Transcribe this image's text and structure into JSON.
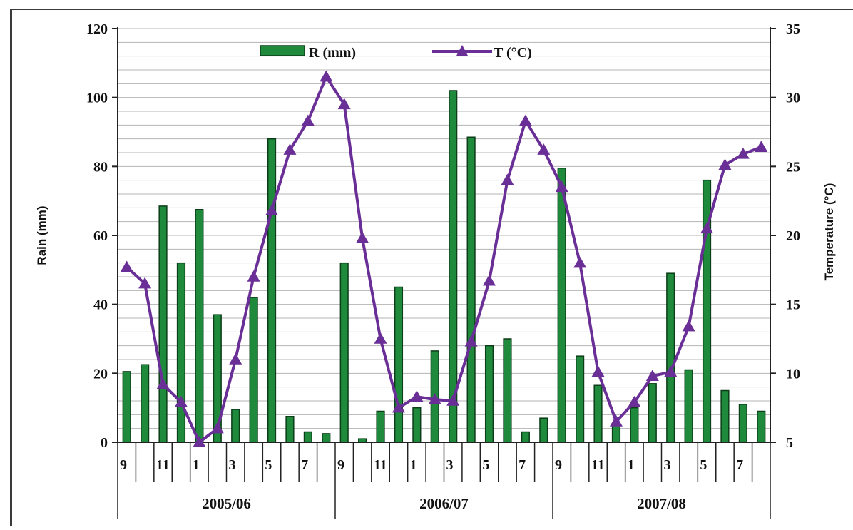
{
  "chart_data": {
    "type": "bar+line",
    "title": "",
    "left_axis": {
      "label": "Rain (mm)",
      "ylim": [
        0,
        120
      ],
      "ticks": [
        0,
        20,
        40,
        60,
        80,
        100,
        120
      ]
    },
    "right_axis": {
      "label": "Temperature (°C)",
      "ylim": [
        5,
        35
      ],
      "ticks": [
        5,
        10,
        15,
        20,
        25,
        30,
        35
      ]
    },
    "legend": {
      "position": "top",
      "rain_label": "R (mm)",
      "temp_label": "T (°C)"
    },
    "grid": "horizontal",
    "colors": {
      "rain_bar": "#1f8a3c",
      "rain_bar_edge": "#0b3d18",
      "temp_line": "#6a2f96",
      "grid": "#b5b5b5",
      "axis": "#222222"
    },
    "month_labels": [
      "9",
      "",
      "11",
      "",
      "1",
      "",
      "3",
      "",
      "5",
      "",
      "7",
      "",
      "9",
      "",
      "11",
      "",
      "1",
      "",
      "3",
      "",
      "5",
      "",
      "7",
      "",
      "9",
      "",
      "11",
      "",
      "1",
      "",
      "3",
      "",
      "5",
      "",
      "7",
      ""
    ],
    "seasons": [
      {
        "label": "2005/06",
        "start": 0,
        "end": 12
      },
      {
        "label": "2006/07",
        "start": 12,
        "end": 24
      },
      {
        "label": "2007/08",
        "start": 24,
        "end": 36
      }
    ],
    "series": [
      {
        "name": "R (mm)",
        "type": "bar",
        "axis": "left",
        "values": [
          20.5,
          22.5,
          68.5,
          52,
          67.5,
          37,
          9.5,
          42,
          88,
          7.5,
          3,
          2.5,
          52,
          1,
          9,
          45,
          10,
          26.5,
          102,
          88.5,
          28,
          30,
          3,
          7,
          79.5,
          25,
          16.5,
          5,
          10,
          17,
          49,
          21,
          76,
          15,
          11,
          9
        ]
      },
      {
        "name": "T (°C)",
        "type": "line",
        "axis": "right",
        "values": [
          17.7,
          16.5,
          9.2,
          7.9,
          5,
          6,
          11,
          17,
          21.8,
          26.2,
          28.3,
          31.5,
          29.5,
          19.8,
          12.5,
          7.5,
          8.3,
          8.1,
          8,
          12.3,
          16.7,
          24,
          28.3,
          26.2,
          23.5,
          18,
          10.1,
          6.5,
          7.9,
          9.8,
          10.1,
          13.4,
          20.5,
          25.1,
          25.9,
          26.4
        ]
      }
    ]
  }
}
